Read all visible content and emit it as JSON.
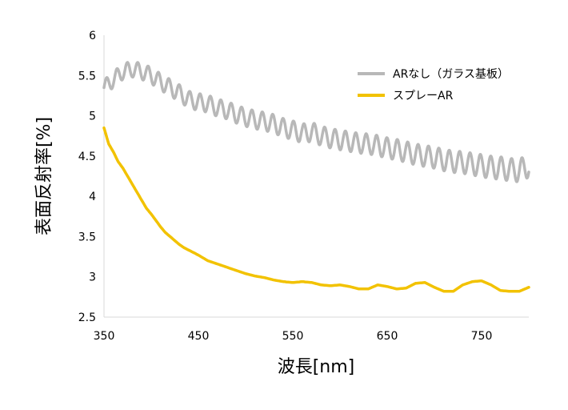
{
  "chart_data": {
    "type": "line",
    "title": "",
    "xlabel": "波長[nm]",
    "ylabel": "表面反射率[%]",
    "xlim": [
      350,
      800
    ],
    "ylim": [
      2.5,
      6
    ],
    "x_ticks": [
      350,
      450,
      550,
      650,
      750
    ],
    "x_tick_labels": [
      "350",
      "450",
      "550",
      "650",
      "750"
    ],
    "y_ticks": [
      2.5,
      3,
      3.5,
      4,
      4.5,
      5,
      5.5,
      6
    ],
    "y_tick_labels": [
      "2.5",
      "3",
      "3.5",
      "4",
      "4.5",
      "5",
      "5.5",
      "6"
    ],
    "grid": false,
    "legend_position": "top-right",
    "series": [
      {
        "name": "ARなし（ガラス基板）",
        "color": "#b8b8b8",
        "x": [
          350,
          360,
          370,
          380,
          390,
          400,
          410,
          420,
          430,
          440,
          450,
          460,
          470,
          480,
          490,
          500,
          510,
          520,
          530,
          540,
          550,
          560,
          570,
          580,
          590,
          600,
          610,
          620,
          630,
          640,
          650,
          660,
          670,
          680,
          690,
          700,
          710,
          720,
          730,
          740,
          750,
          760,
          770,
          780,
          790,
          800
        ],
        "y": [
          5.35,
          5.45,
          5.55,
          5.58,
          5.55,
          5.5,
          5.42,
          5.35,
          5.28,
          5.2,
          5.17,
          5.15,
          5.1,
          5.07,
          5.02,
          4.98,
          4.95,
          4.93,
          4.9,
          4.85,
          4.82,
          4.78,
          4.8,
          4.75,
          4.72,
          4.7,
          4.68,
          4.66,
          4.65,
          4.63,
          4.6,
          4.58,
          4.55,
          4.52,
          4.5,
          4.48,
          4.45,
          4.43,
          4.42,
          4.4,
          4.38,
          4.36,
          4.35,
          4.33,
          4.32,
          4.38
        ],
        "osc_amp": 0.12,
        "osc_period": 11
      },
      {
        "name": "スプレーAR",
        "color": "#f2c200",
        "x": [
          350,
          355,
          360,
          365,
          370,
          375,
          380,
          385,
          390,
          395,
          400,
          405,
          410,
          415,
          420,
          425,
          430,
          435,
          440,
          445,
          450,
          460,
          470,
          480,
          490,
          500,
          510,
          520,
          530,
          540,
          550,
          560,
          570,
          580,
          590,
          600,
          610,
          620,
          630,
          640,
          650,
          660,
          670,
          680,
          690,
          700,
          710,
          720,
          730,
          740,
          750,
          760,
          770,
          780,
          790,
          800
        ],
        "y": [
          4.85,
          4.65,
          4.55,
          4.43,
          4.35,
          4.25,
          4.15,
          4.05,
          3.95,
          3.85,
          3.78,
          3.7,
          3.62,
          3.55,
          3.5,
          3.45,
          3.4,
          3.36,
          3.33,
          3.3,
          3.27,
          3.2,
          3.16,
          3.12,
          3.08,
          3.04,
          3.01,
          2.99,
          2.96,
          2.94,
          2.93,
          2.94,
          2.93,
          2.9,
          2.89,
          2.9,
          2.88,
          2.85,
          2.85,
          2.9,
          2.88,
          2.85,
          2.86,
          2.92,
          2.93,
          2.87,
          2.82,
          2.82,
          2.9,
          2.94,
          2.95,
          2.9,
          2.83,
          2.82,
          2.82,
          2.87
        ]
      }
    ]
  }
}
